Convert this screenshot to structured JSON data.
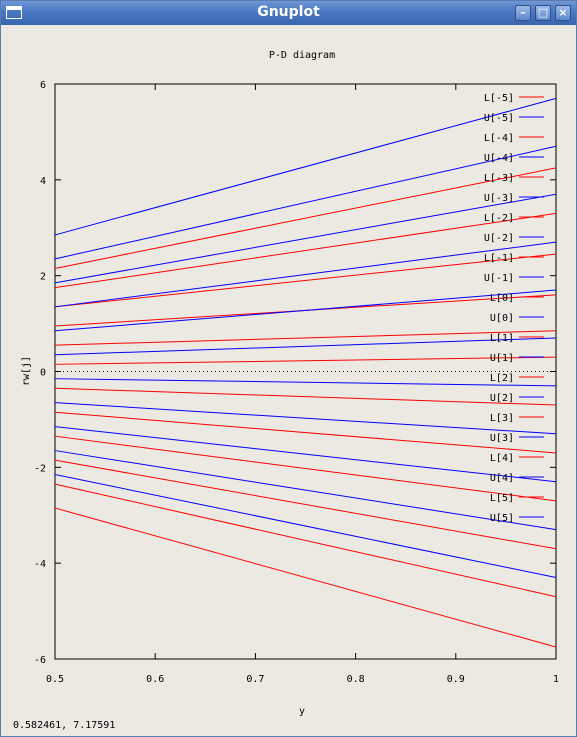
{
  "window": {
    "title": "Gnuplot"
  },
  "status_text": "0.582461,  7.17591",
  "colors": {
    "L": "#ff0000",
    "U": "#0000ff",
    "axis": "#000000"
  },
  "icons": {
    "app": "window-icon",
    "minimize": "minimize-icon",
    "maximize": "maximize-icon",
    "close": "close-icon"
  },
  "chart_data": {
    "type": "line",
    "title": "P-D diagram",
    "xlabel": "y",
    "ylabel": "rw[j]",
    "xlim": [
      0.5,
      1
    ],
    "ylim": [
      -6,
      6
    ],
    "xticks": [
      "0.5",
      "0.6",
      "0.7",
      "0.8",
      "0.9",
      "1"
    ],
    "yticks": [
      "-6",
      "-4",
      "-2",
      "0",
      "2",
      "4",
      "6"
    ],
    "xtick_values": [
      0.5,
      0.6,
      0.7,
      0.8,
      0.9,
      1
    ],
    "ytick_values": [
      -6,
      -4,
      -2,
      0,
      2,
      4,
      6
    ],
    "grid": false,
    "zero_line": "dotted",
    "legend_position": "top-right",
    "x": [
      0.5,
      1
    ],
    "series": [
      {
        "name": "L[-5]",
        "color": "#ff0000",
        "values": [
          2.15,
          4.25
        ]
      },
      {
        "name": "U[-5]",
        "color": "#0000ff",
        "values": [
          2.85,
          5.7
        ]
      },
      {
        "name": "L[-4]",
        "color": "#ff0000",
        "values": [
          1.75,
          3.3
        ]
      },
      {
        "name": "U[-4]",
        "color": "#0000ff",
        "values": [
          2.35,
          4.7
        ]
      },
      {
        "name": "L[-3]",
        "color": "#ff0000",
        "values": [
          1.35,
          2.45
        ]
      },
      {
        "name": "U[-3]",
        "color": "#0000ff",
        "values": [
          1.85,
          3.7
        ]
      },
      {
        "name": "L[-2]",
        "color": "#ff0000",
        "values": [
          0.95,
          1.6
        ]
      },
      {
        "name": "U[-2]",
        "color": "#0000ff",
        "values": [
          1.35,
          2.7
        ]
      },
      {
        "name": "L[-1]",
        "color": "#ff0000",
        "values": [
          0.55,
          0.85
        ]
      },
      {
        "name": "U[-1]",
        "color": "#0000ff",
        "values": [
          0.85,
          1.7
        ]
      },
      {
        "name": "L[0]",
        "color": "#ff0000",
        "values": [
          0.15,
          0.3
        ]
      },
      {
        "name": "U[0]",
        "color": "#0000ff",
        "values": [
          0.35,
          0.7
        ]
      },
      {
        "name": "L[1]",
        "color": "#ff0000",
        "values": [
          -0.35,
          -0.7
        ]
      },
      {
        "name": "U[1]",
        "color": "#0000ff",
        "values": [
          -0.15,
          -0.3
        ]
      },
      {
        "name": "L[2]",
        "color": "#ff0000",
        "values": [
          -0.85,
          -1.7
        ]
      },
      {
        "name": "U[2]",
        "color": "#0000ff",
        "values": [
          -0.65,
          -1.3
        ]
      },
      {
        "name": "L[3]",
        "color": "#ff0000",
        "values": [
          -1.35,
          -2.7
        ]
      },
      {
        "name": "U[3]",
        "color": "#0000ff",
        "values": [
          -1.15,
          -2.3
        ]
      },
      {
        "name": "L[4]",
        "color": "#ff0000",
        "values": [
          -1.85,
          -3.7
        ]
      },
      {
        "name": "U[4]",
        "color": "#0000ff",
        "values": [
          -1.65,
          -3.3
        ]
      },
      {
        "name": "L[5]",
        "color": "#ff0000",
        "values": [
          -2.35,
          -4.7
        ]
      },
      {
        "name": "U[5]",
        "color": "#0000ff",
        "values": [
          -2.15,
          -4.3
        ]
      },
      {
        "name": "",
        "color": "#ff0000",
        "values": [
          -2.85,
          -5.75
        ]
      }
    ]
  }
}
